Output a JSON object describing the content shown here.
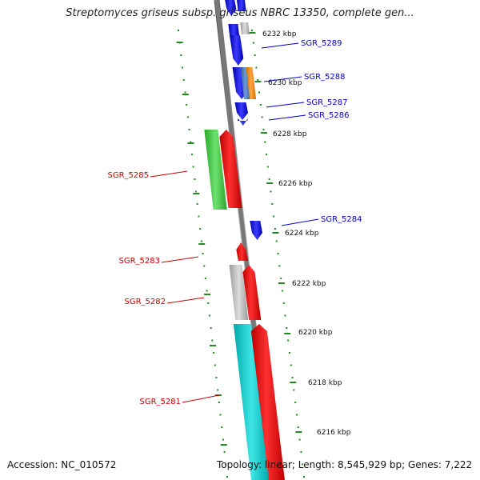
{
  "title": "Streptomyces griseus subsp. griseus NBRC 13350, complete gen...",
  "footer": {
    "accession": "Accession: NC_010572",
    "summary": "Topology: linear; Length: 8,545,929 bp; Genes: 7,222"
  },
  "colors": {
    "forward": "#ff0000",
    "reverse": "#0000ff",
    "backbone": "#888888",
    "ticks": "#228b22"
  },
  "ruler": [
    {
      "label": "6232 kbp"
    },
    {
      "label": "6230 kbp"
    },
    {
      "label": "6228 kbp"
    },
    {
      "label": "6226 kbp"
    },
    {
      "label": "6224 kbp"
    },
    {
      "label": "6222 kbp"
    },
    {
      "label": "6220 kbp"
    },
    {
      "label": "6218 kbp"
    },
    {
      "label": "6216 kbp"
    }
  ],
  "genes": [
    {
      "id": "SGR_5289",
      "color": "#0000cc"
    },
    {
      "id": "SGR_5288",
      "color": "#0000cc"
    },
    {
      "id": "SGR_5287",
      "color": "#0000cc"
    },
    {
      "id": "SGR_5286",
      "color": "#0000cc"
    },
    {
      "id": "SGR_5285",
      "color": "#cc0000"
    },
    {
      "id": "SGR_5284",
      "color": "#0000cc"
    },
    {
      "id": "SGR_5283",
      "color": "#cc0000"
    },
    {
      "id": "SGR_5282",
      "color": "#cc0000"
    },
    {
      "id": "SGR_5281",
      "color": "#cc0000"
    }
  ]
}
